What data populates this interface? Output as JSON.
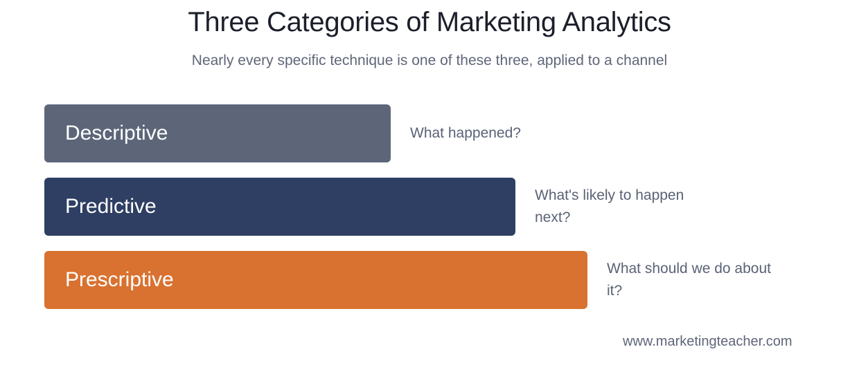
{
  "title": "Three Categories of Marketing Analytics",
  "subtitle": "Nearly every specific technique is one of these three, applied to a channel",
  "rows": [
    {
      "label": "Descriptive",
      "question_line1": "What happened?",
      "question_line2": "",
      "color": "#5d6679"
    },
    {
      "label": "Predictive",
      "question_line1": "What's likely to happen",
      "question_line2": "next?",
      "color": "#2f3f63"
    },
    {
      "label": "Prescriptive",
      "question_line1": "What should we do about",
      "question_line2": "it?",
      "color": "#d97230"
    }
  ],
  "footer": "www.marketingteacher.com"
}
